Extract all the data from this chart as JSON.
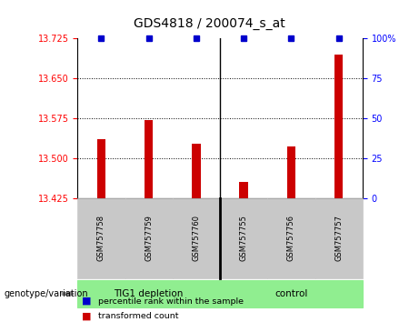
{
  "title": "GDS4818 / 200074_s_at",
  "samples": [
    "GSM757758",
    "GSM757759",
    "GSM757760",
    "GSM757755",
    "GSM757756",
    "GSM757757"
  ],
  "red_values": [
    13.535,
    13.572,
    13.528,
    13.455,
    13.522,
    13.695
  ],
  "blue_values": [
    100,
    100,
    100,
    100,
    100,
    100
  ],
  "groups": [
    {
      "label": "TIG1 depletion",
      "n": 3
    },
    {
      "label": "control",
      "n": 3
    }
  ],
  "ylim_left": [
    13.425,
    13.725
  ],
  "ylim_right": [
    0,
    100
  ],
  "yticks_left": [
    13.425,
    13.5,
    13.575,
    13.65,
    13.725
  ],
  "yticks_right": [
    0,
    25,
    50,
    75,
    100
  ],
  "ytick_labels_right": [
    "0",
    "25",
    "50",
    "75",
    "100%"
  ],
  "bar_color_red": "#CC0000",
  "bar_color_blue": "#0000CC",
  "legend_red_label": "transformed count",
  "legend_blue_label": "percentile rank within the sample",
  "genotype_label": "genotype/variation",
  "sample_bg_color": "#C8C8C8",
  "group_bg_color": "#90EE90"
}
